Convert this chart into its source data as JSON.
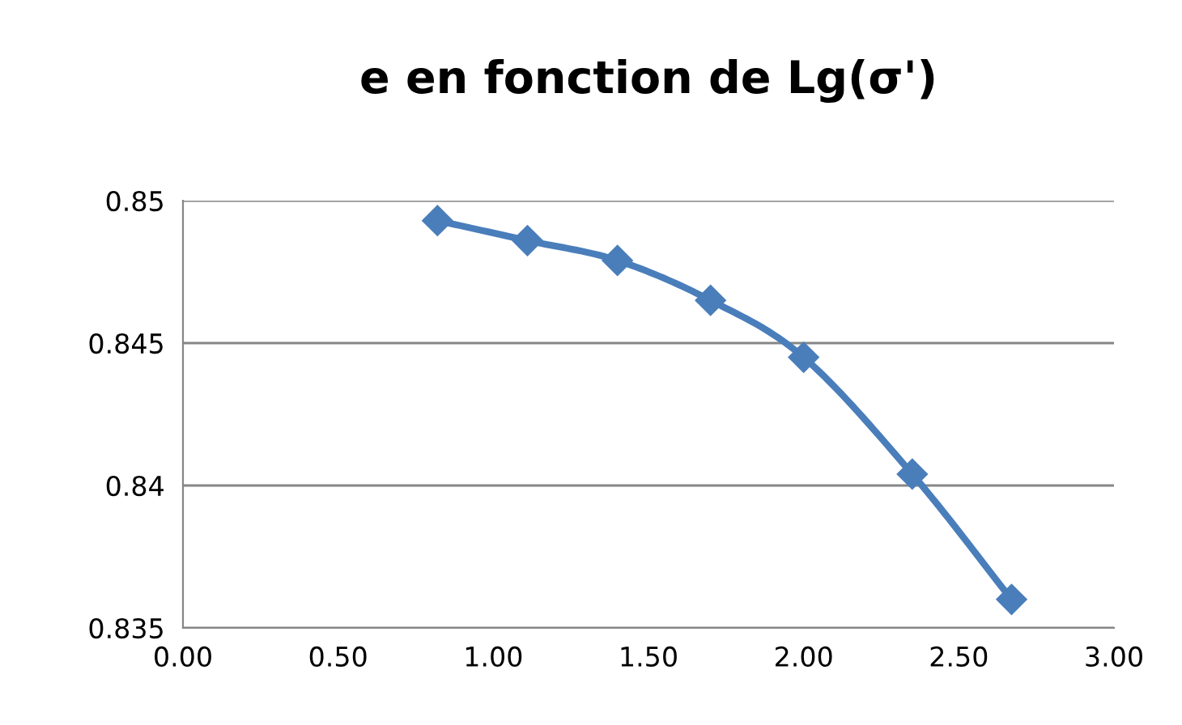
{
  "chart_data": {
    "type": "line",
    "title": "e en fonction de Lg(σ')",
    "x": [
      0.82,
      1.11,
      1.4,
      1.7,
      2.0,
      2.35,
      2.67
    ],
    "series": [
      {
        "color": "#4a7ebb",
        "values": [
          0.8493,
          0.8486,
          0.8479,
          0.8465,
          0.8445,
          0.8404,
          0.836
        ]
      }
    ],
    "xlim": [
      0,
      3
    ],
    "xticks": [
      {
        "value": 0,
        "label": "0.00"
      },
      {
        "value": 0.5,
        "label": "0.50"
      },
      {
        "value": 1,
        "label": "1.00"
      },
      {
        "value": 1.5,
        "label": "1.50"
      },
      {
        "value": 2,
        "label": "2.00"
      },
      {
        "value": 2.5,
        "label": "2.50"
      },
      {
        "value": 3,
        "label": "3.00"
      }
    ],
    "ylim": [
      0.835,
      0.85
    ],
    "yticks": [
      0.835,
      0.84,
      0.845,
      0.85
    ],
    "grid": "y",
    "marker": "diamond",
    "line_style": "solid"
  }
}
